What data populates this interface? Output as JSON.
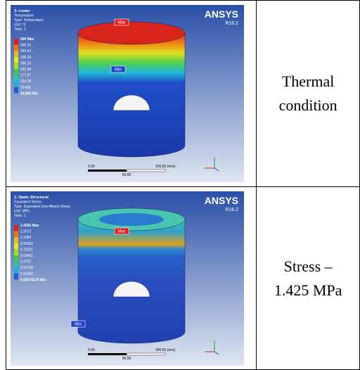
{
  "table": {
    "rows": [
      {
        "panel": {
          "title_lines": [
            "3: crown",
            "Temperature",
            "Type: Temperature",
            "Unit: °C",
            "Time: 1"
          ],
          "legend": [
            "500 Max",
            "446.31",
            "392.62",
            "338.93",
            "285.25",
            "231.56",
            "177.87",
            "124.18",
            "70.492",
            "16.804 Min"
          ],
          "logo": "ANSYS",
          "version": "R16.2",
          "max_label": "Max",
          "min_label": "Min",
          "scale": [
            "0.00",
            "100.00 (mm)",
            "50.00"
          ]
        },
        "caption": [
          "Thermal",
          "condition"
        ]
      },
      {
        "panel": {
          "title_lines": [
            "1: Static Structural",
            "Equivalent Stress",
            "Type: Equivalent (von-Mises) Stress",
            "Unit: MPa",
            "Time: 1"
          ],
          "legend": [
            "1.4255 Max",
            "1.2672",
            "1.1089",
            "0.95062",
            "0.79231",
            "0.63401",
            "0.4757",
            "0.31739",
            "0.15909",
            "0.00078274 Min"
          ],
          "logo": "ANSYS",
          "version": "R16.2",
          "max_label": "Max",
          "min_label": "Min",
          "scale": [
            "0.00",
            "100.00 (mm)",
            "50.00"
          ]
        },
        "caption": [
          "Stress –",
          "1.425 MPa"
        ]
      }
    ]
  }
}
